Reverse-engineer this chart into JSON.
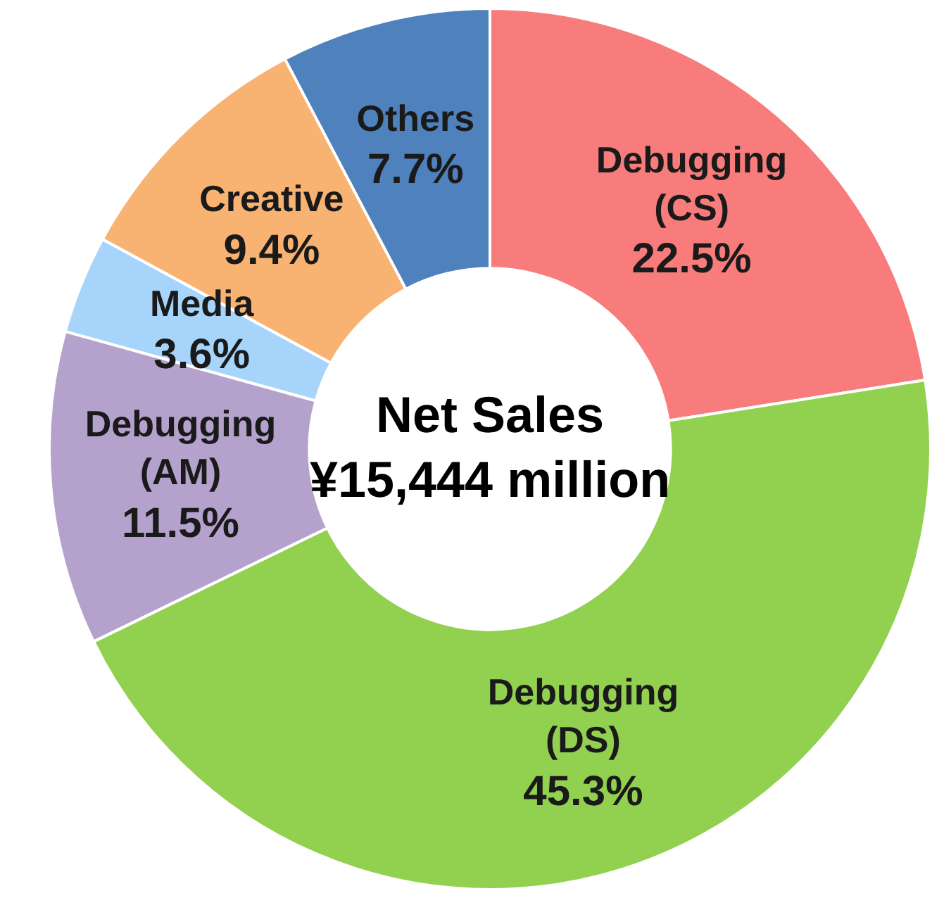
{
  "chart_data": {
    "type": "donut",
    "title": "Net Sales",
    "subtitle": "¥15,444 million",
    "categories": [
      "Debugging (CS)",
      "Debugging (DS)",
      "Debugging (AM)",
      "Media",
      "Creative",
      "Others"
    ],
    "values": [
      22.5,
      45.3,
      11.5,
      3.6,
      9.4,
      7.7
    ],
    "value_labels": [
      "22.5%",
      "45.3%",
      "11.5%",
      "3.6%",
      "9.4%",
      "7.7%"
    ],
    "colors": [
      "#f87c7c",
      "#92d050",
      "#b4a2cc",
      "#a6d4fa",
      "#f8b272",
      "#4f81bd"
    ],
    "legend": false
  }
}
